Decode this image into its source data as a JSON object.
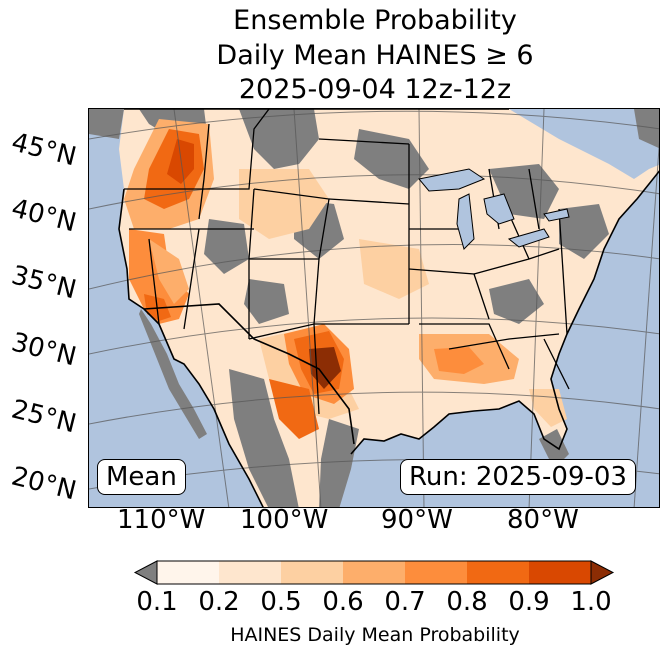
{
  "title": {
    "line1": "Ensemble Probability",
    "line2": "Daily Mean HAINES ≥ 6",
    "line3": "2025-09-04 12z-12z"
  },
  "map": {
    "latitude_labels": [
      "45°N",
      "40°N",
      "35°N",
      "30°N",
      "25°N",
      "20°N"
    ],
    "longitude_labels": [
      "110°W",
      "100°W",
      "90°W",
      "80°W"
    ],
    "mean_label": "Mean",
    "run_label": "Run: 2025-09-03",
    "colors": {
      "ocean": "#b0c4de",
      "missing": "#7f7f7f",
      "light": "#fee6ce"
    }
  },
  "legend": {
    "title": "HAINES Daily Mean Probability",
    "ticks": [
      "0.1",
      "0.2",
      "0.5",
      "0.6",
      "0.7",
      "0.8",
      "0.9",
      "1.0"
    ],
    "colors": [
      "#fff5eb",
      "#fee6ce",
      "#fdd0a2",
      "#fdae6b",
      "#fd8d3c",
      "#f16913",
      "#d94801",
      "#8c2d04"
    ],
    "under_color": "#7f7f7f"
  }
}
